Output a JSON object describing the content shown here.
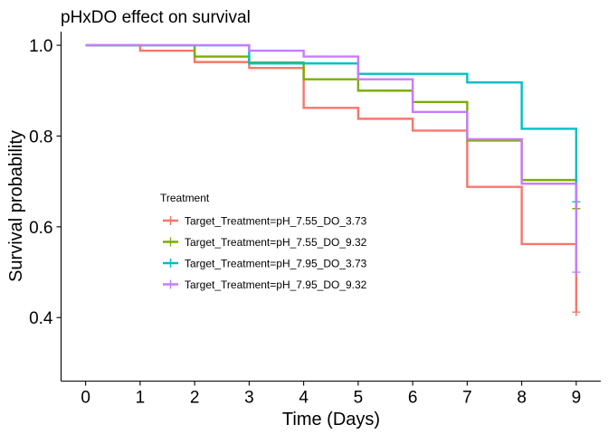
{
  "chart_data": {
    "type": "line",
    "title": "pHxDO effect on survival",
    "xlabel": "Time (Days)",
    "ylabel": "Survival probability",
    "xlim": [
      -0.45,
      9.45
    ],
    "ylim": [
      0.26,
      1.03
    ],
    "xticks": [
      "0",
      "1",
      "2",
      "3",
      "4",
      "5",
      "6",
      "7",
      "8",
      "9"
    ],
    "yticks": [
      "0.4",
      "0.6",
      "0.8",
      "1.0"
    ],
    "grid": false,
    "legend": {
      "title": "Treatment",
      "position": "inside-left-middle"
    },
    "series": [
      {
        "name": "Target_Treatment=pH_7.55_DO_3.73",
        "color": "#F8766D",
        "steps": [
          [
            0,
            1.0
          ],
          [
            1,
            0.988
          ],
          [
            2,
            0.963
          ],
          [
            3,
            0.95
          ],
          [
            4,
            0.862
          ],
          [
            5,
            0.838
          ],
          [
            6,
            0.812
          ],
          [
            7,
            0.688
          ],
          [
            8,
            0.562
          ],
          [
            9,
            0.412
          ]
        ],
        "censor": [
          [
            9,
            0.412
          ]
        ]
      },
      {
        "name": "Target_Treatment=pH_7.55_DO_9.32",
        "color": "#7CAE00",
        "steps": [
          [
            0,
            1.0
          ],
          [
            2,
            0.975
          ],
          [
            3,
            0.962
          ],
          [
            4,
            0.925
          ],
          [
            5,
            0.9
          ],
          [
            6,
            0.875
          ],
          [
            7,
            0.79
          ],
          [
            8,
            0.703
          ],
          [
            9,
            0.64
          ]
        ],
        "censor": [
          [
            9,
            0.64
          ]
        ]
      },
      {
        "name": "Target_Treatment=pH_7.95_DO_3.73",
        "color": "#00BFC4",
        "steps": [
          [
            0,
            1.0
          ],
          [
            3,
            0.96
          ],
          [
            5,
            0.937
          ],
          [
            7,
            0.918
          ],
          [
            8,
            0.816
          ],
          [
            9,
            0.655
          ]
        ],
        "censor": [
          [
            9,
            0.655
          ]
        ]
      },
      {
        "name": "Target_Treatment=pH_7.95_DO_9.32",
        "color": "#C77CFF",
        "steps": [
          [
            0,
            1.0
          ],
          [
            3,
            0.988
          ],
          [
            4,
            0.975
          ],
          [
            5,
            0.925
          ],
          [
            6,
            0.853
          ],
          [
            7,
            0.793
          ],
          [
            8,
            0.695
          ],
          [
            9,
            0.5
          ]
        ],
        "censor": [
          [
            9,
            0.5
          ]
        ]
      }
    ]
  }
}
